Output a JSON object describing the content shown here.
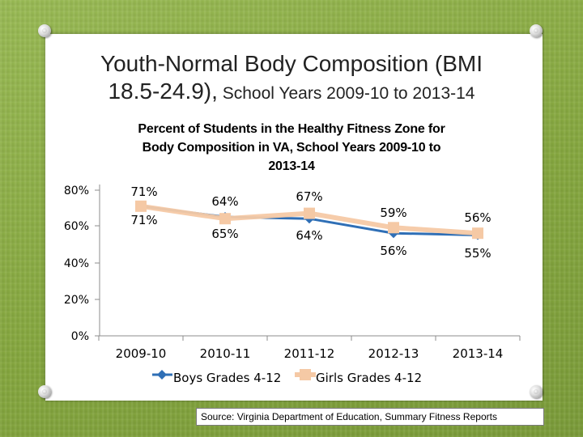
{
  "title": {
    "main": "Youth-Normal Body Composition (BMI",
    "line2_bold": "18.5-24.9),",
    "line2_sub": " School Years 2009-10 to 2013-14"
  },
  "chart_data": {
    "type": "line",
    "title": "Percent of Students in the Healthy Fitness Zone for Body Composition in VA, School Years 2009-10 to 2013-14",
    "title_lines": [
      "Percent of Students in the Healthy Fitness Zone for",
      "Body Composition in VA, School Years 2009-10 to",
      "2013-14"
    ],
    "categories": [
      "2009-10",
      "2010-11",
      "2011-12",
      "2012-13",
      "2013-14"
    ],
    "series": [
      {
        "name": "Boys Grades 4-12",
        "values": [
          71,
          65,
          64,
          56,
          55
        ],
        "labels": [
          "71%",
          "65%",
          "64%",
          "56%",
          "55%"
        ],
        "color": "#2f6fb6"
      },
      {
        "name": "Girls Grades 4-12",
        "values": [
          71,
          64,
          67,
          59,
          56
        ],
        "labels": [
          "71%",
          "64%",
          "67%",
          "59%",
          "56%"
        ],
        "color": "#f5c9a5"
      }
    ],
    "y_ticks": [
      "0%",
      "20%",
      "40%",
      "60%",
      "80%"
    ],
    "xlabel": "",
    "ylabel": "",
    "legend_position": "bottom"
  },
  "source": "Source: Virginia Department of Education, Summary Fitness Reports"
}
